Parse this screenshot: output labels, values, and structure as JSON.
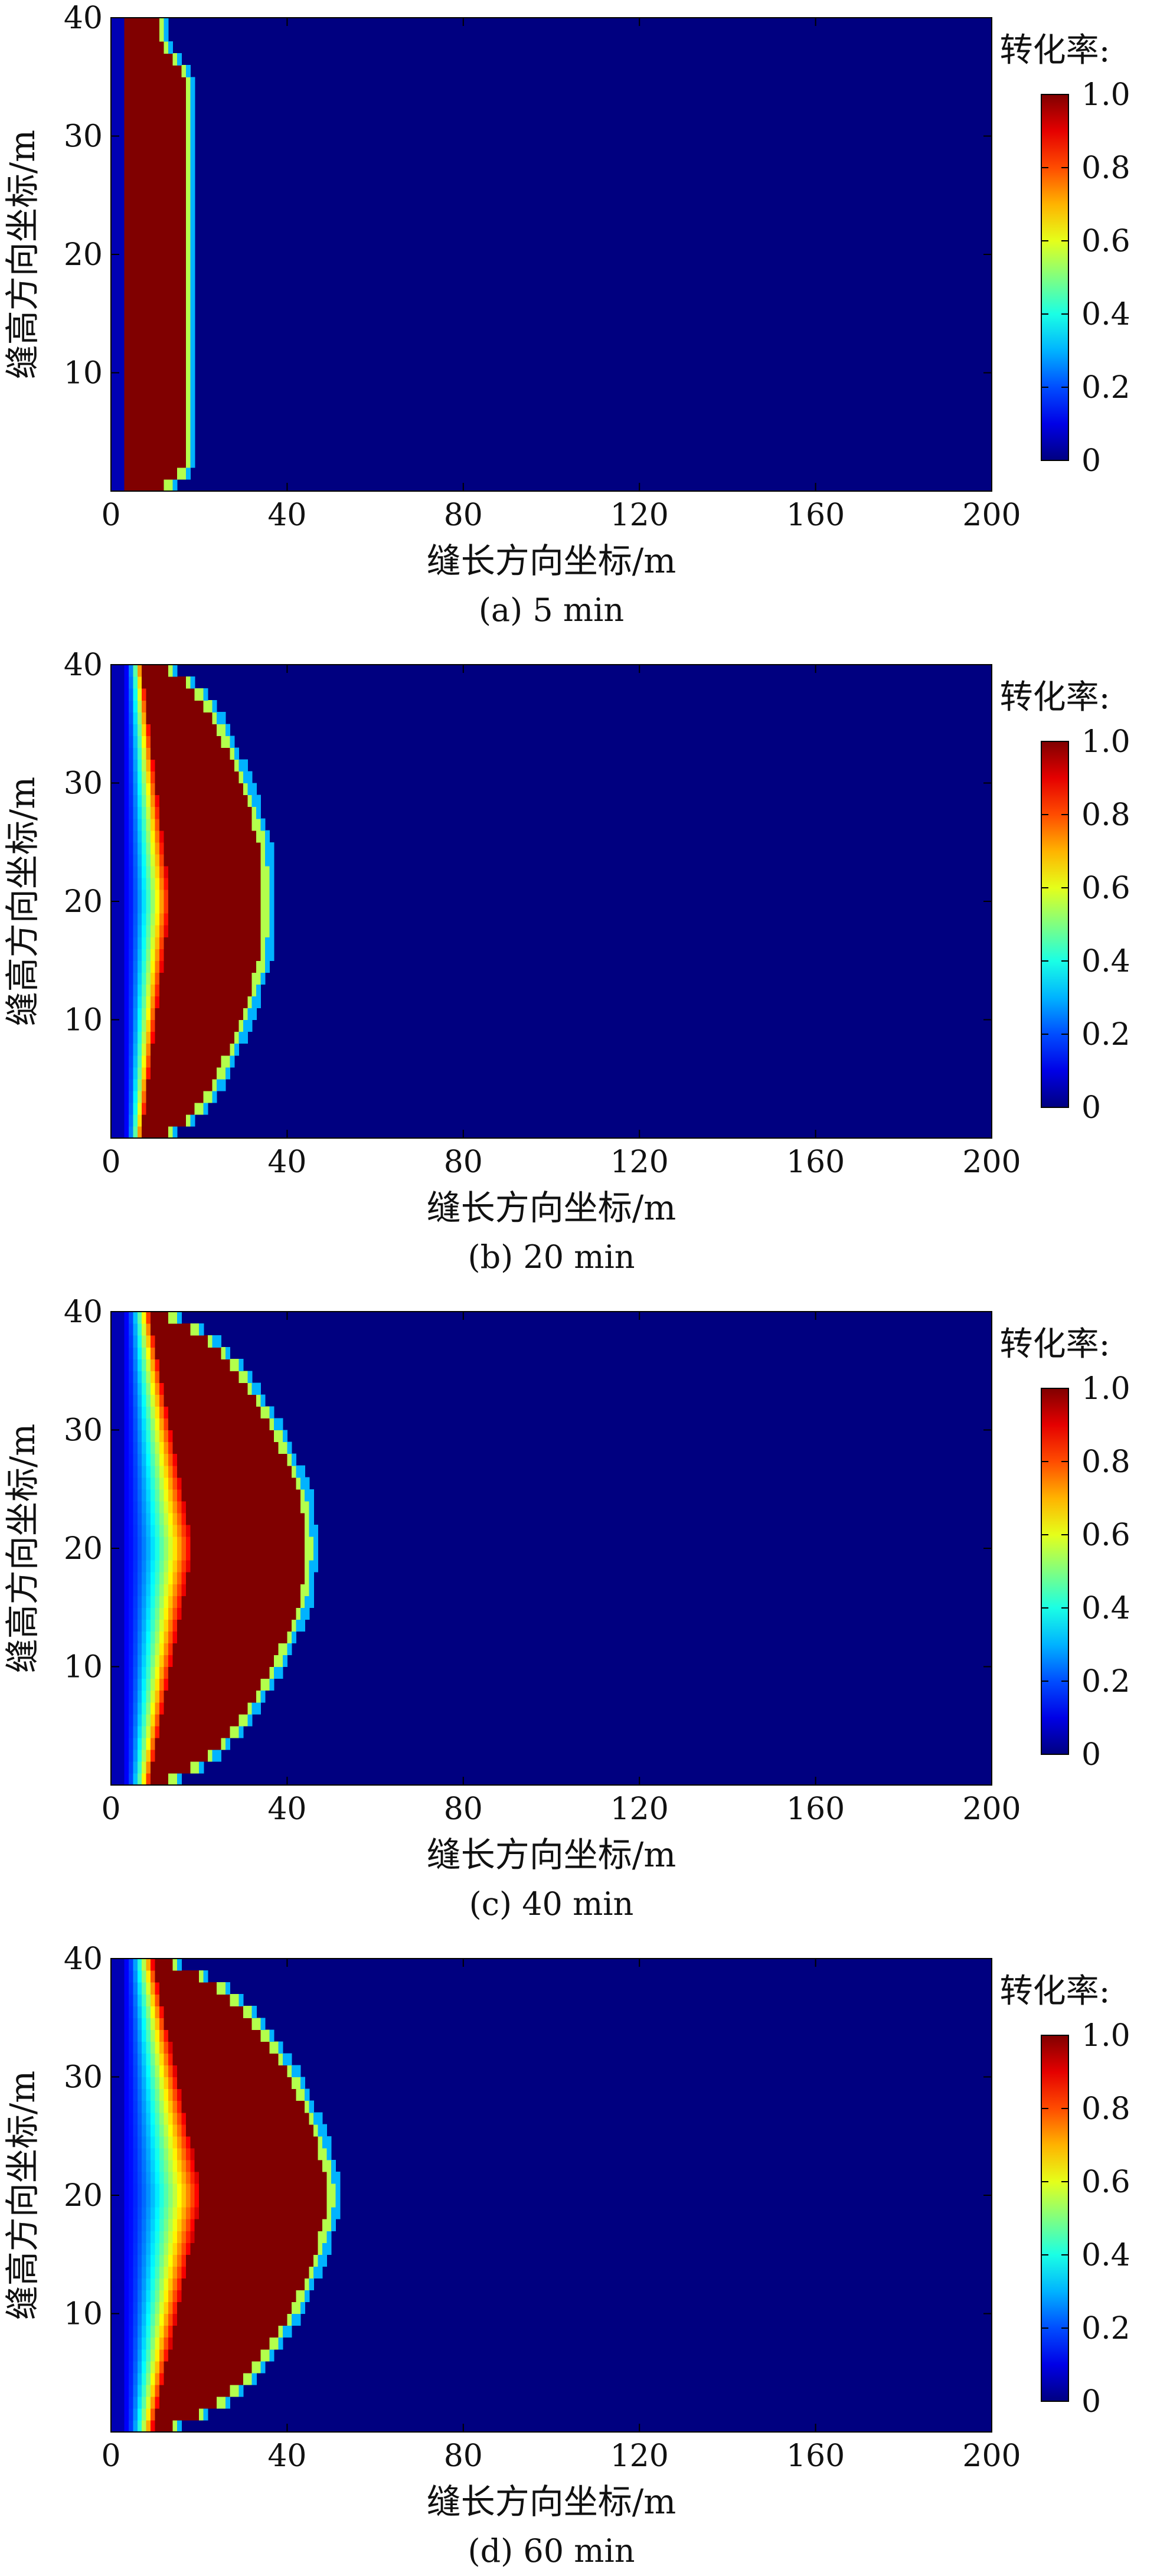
{
  "figure": {
    "panels": [
      {
        "caption": "(a) 5 min"
      },
      {
        "caption": "(b) 20 min"
      },
      {
        "caption": "(c) 40 min"
      },
      {
        "caption": "(d) 60 min"
      }
    ],
    "colorbar": {
      "title": "转化率:",
      "ticks": [
        "1.0",
        "0.8",
        "0.6",
        "0.4",
        "0.2",
        "0"
      ]
    }
  },
  "chart_data": [
    {
      "type": "heatmap",
      "title": "",
      "caption": "(a) 5 min",
      "xlabel": "缝长方向坐标/m",
      "ylabel": "缝高方向坐标/m",
      "xlim": [
        0,
        200
      ],
      "ylim": [
        0,
        40
      ],
      "xticks": [
        0,
        40,
        80,
        120,
        160,
        200
      ],
      "yticks": [
        10,
        20,
        30,
        40
      ],
      "colorbar_label": "转化率:",
      "colorbar_range": [
        0,
        1
      ],
      "colormap": "jet",
      "background_value": 0,
      "profile": {
        "y": [
          0,
          2,
          5,
          10,
          20,
          30,
          35,
          38,
          40
        ],
        "front_x": [
          12,
          18,
          18,
          18,
          18,
          18,
          18,
          12,
          12
        ],
        "inner_x": [
          3.5,
          3.5,
          3.5,
          3.5,
          3.5,
          3.5,
          3.5,
          3.5,
          3.5
        ],
        "depleted_width": 0
      }
    },
    {
      "type": "heatmap",
      "title": "",
      "caption": "(b) 20 min",
      "xlabel": "缝长方向坐标/m",
      "ylabel": "缝高方向坐标/m",
      "xlim": [
        0,
        200
      ],
      "ylim": [
        0,
        40
      ],
      "xticks": [
        0,
        40,
        80,
        120,
        160,
        200
      ],
      "yticks": [
        10,
        20,
        30,
        40
      ],
      "colorbar_label": "转化率:",
      "colorbar_range": [
        0,
        1
      ],
      "colormap": "jet",
      "background_value": 0,
      "profile": {
        "y": [
          0,
          2,
          5,
          10,
          15,
          20,
          25,
          30,
          35,
          38,
          40
        ],
        "front_x": [
          12,
          20,
          25,
          31,
          35,
          36,
          35,
          31,
          25,
          20,
          12
        ],
        "inner_x": [
          3.5,
          3.5,
          3.5,
          3.5,
          3.5,
          3.5,
          3.5,
          3.5,
          3.5,
          3.5,
          3.5
        ],
        "depleted_width": 10
      }
    },
    {
      "type": "heatmap",
      "title": "",
      "caption": "(c) 40 min",
      "xlabel": "缝长方向坐标/m",
      "ylabel": "缝高方向坐标/m",
      "xlim": [
        0,
        200
      ],
      "ylim": [
        0,
        40
      ],
      "xticks": [
        0,
        40,
        80,
        120,
        160,
        200
      ],
      "yticks": [
        10,
        20,
        30,
        40
      ],
      "colorbar_label": "转化率:",
      "colorbar_range": [
        0,
        1
      ],
      "colormap": "jet",
      "background_value": 0,
      "profile": {
        "y": [
          0,
          2,
          5,
          10,
          15,
          20,
          25,
          30,
          35,
          38,
          40
        ],
        "front_x": [
          12,
          22,
          30,
          38,
          44,
          46,
          44,
          38,
          30,
          22,
          12
        ],
        "inner_x": [
          3.5,
          3.5,
          3.5,
          3.5,
          3.5,
          3.5,
          3.5,
          3.5,
          3.5,
          3.5,
          3.5
        ],
        "depleted_width": 15
      }
    },
    {
      "type": "heatmap",
      "title": "",
      "caption": "(d) 60 min",
      "xlabel": "缝长方向坐标/m",
      "ylabel": "缝高方向坐标/m",
      "xlim": [
        0,
        200
      ],
      "ylim": [
        0,
        40
      ],
      "xticks": [
        0,
        40,
        80,
        120,
        160,
        200
      ],
      "yticks": [
        10,
        20,
        30,
        40
      ],
      "colorbar_label": "转化率:",
      "colorbar_range": [
        0,
        1
      ],
      "colormap": "jet",
      "background_value": 0,
      "profile": {
        "y": [
          0,
          2,
          5,
          10,
          15,
          20,
          25,
          30,
          35,
          38,
          40
        ],
        "front_x": [
          12,
          24,
          33,
          42,
          48,
          51,
          48,
          42,
          33,
          24,
          12
        ],
        "inner_x": [
          3.5,
          3.5,
          3.5,
          3.5,
          3.5,
          3.5,
          3.5,
          3.5,
          3.5,
          3.5,
          3.5
        ],
        "depleted_width": 17
      }
    }
  ]
}
